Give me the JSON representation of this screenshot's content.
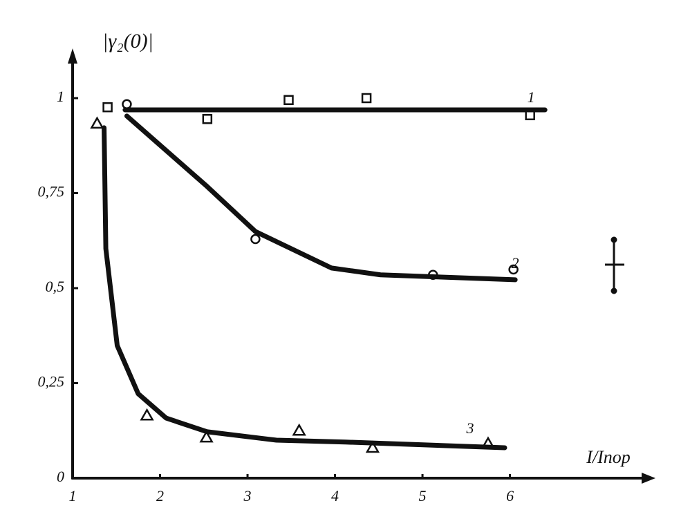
{
  "chart_data": {
    "type": "scatter",
    "y_label": "|γ₂(0)|",
    "x_label": "I/Iпор",
    "xlim": [
      1,
      7.6
    ],
    "ylim": [
      0,
      1.12
    ],
    "xticks": [
      1,
      2,
      3,
      4,
      5,
      6
    ],
    "yticks": [
      0,
      {
        "value": 0.25,
        "label": "0,25"
      },
      {
        "value": 0.5,
        "label": "0,5"
      },
      {
        "value": 0.75,
        "label": "0,75"
      },
      1
    ],
    "series": [
      {
        "name": "1",
        "color": "#111",
        "marker": "square",
        "x": [
          1.4,
          2.54,
          3.47,
          4.36,
          6.23
        ],
        "values": [
          0.976,
          0.945,
          0.995,
          1.0,
          0.955
        ],
        "fit_x": [
          1.6,
          6.4
        ],
        "fit_values": [
          0.969,
          0.969
        ]
      },
      {
        "name": "2",
        "color": "#111",
        "marker": "circle",
        "x": [
          1.62,
          3.09,
          5.12,
          6.04
        ],
        "values": [
          0.984,
          0.629,
          0.535,
          0.549
        ],
        "fit_x": [
          1.62,
          2.54,
          3.09,
          3.96,
          4.52,
          6.06
        ],
        "fit_values": [
          0.953,
          0.767,
          0.649,
          0.553,
          0.535,
          0.522
        ]
      },
      {
        "name": "3",
        "color": "#111",
        "marker": "triangle",
        "x": [
          1.28,
          1.85,
          2.53,
          3.59,
          4.43,
          5.75
        ],
        "values": [
          0.933,
          0.165,
          0.107,
          0.125,
          0.08,
          0.091
        ],
        "fit_x": [
          1.36,
          1.38,
          1.51,
          1.75,
          2.07,
          2.54,
          3.33,
          4.12,
          5.94
        ],
        "fit_values": [
          0.922,
          0.604,
          0.349,
          0.222,
          0.158,
          0.122,
          0.1,
          0.095,
          0.08
        ]
      }
    ]
  }
}
